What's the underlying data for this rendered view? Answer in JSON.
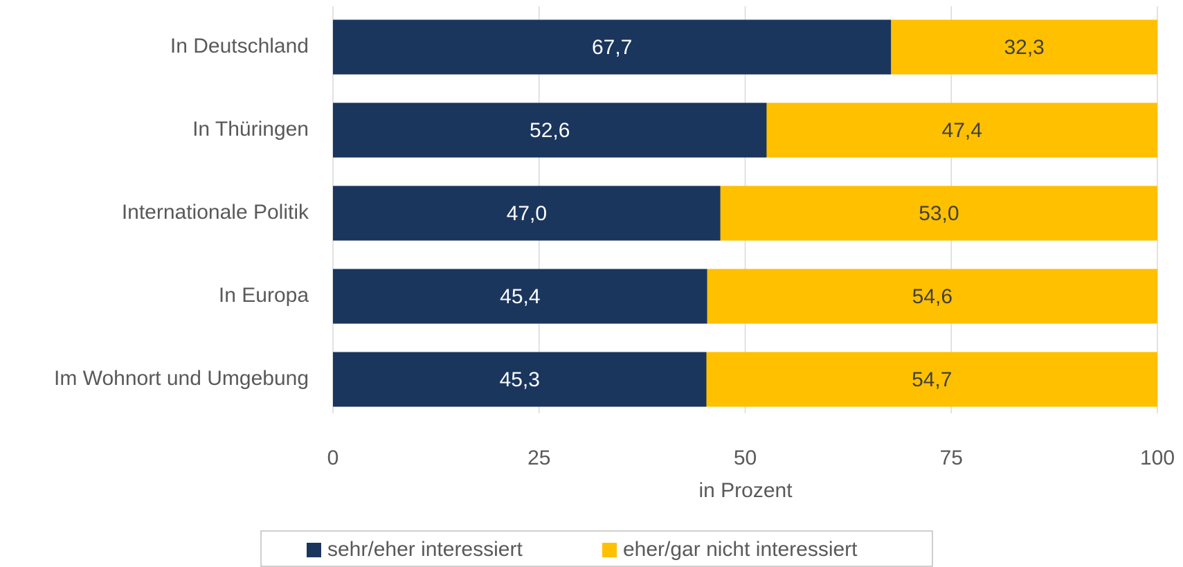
{
  "chart_data": {
    "type": "stacked_bar_horizontal",
    "categories": [
      "In Deutschland",
      "In Thüringen",
      "Internationale Politik",
      "In Europa",
      "Im Wohnort und Umgebung"
    ],
    "series": [
      {
        "name": "sehr/eher interessiert",
        "color": "#1b365d",
        "values": [
          67.7,
          52.6,
          47.0,
          45.4,
          45.3
        ],
        "value_labels": [
          "67,7",
          "52,6",
          "47,0",
          "45,4",
          "45,3"
        ]
      },
      {
        "name": "eher/gar nicht interessiert",
        "color": "#ffc000",
        "values": [
          32.3,
          47.4,
          53.0,
          54.6,
          54.7
        ],
        "value_labels": [
          "32,3",
          "47,4",
          "53,0",
          "54,6",
          "54,7"
        ]
      }
    ],
    "xlabel": "in Prozent",
    "xlim": [
      0,
      100
    ],
    "xticks": [
      0,
      25,
      50,
      75,
      100
    ],
    "grid": true,
    "legend": "bottom"
  }
}
